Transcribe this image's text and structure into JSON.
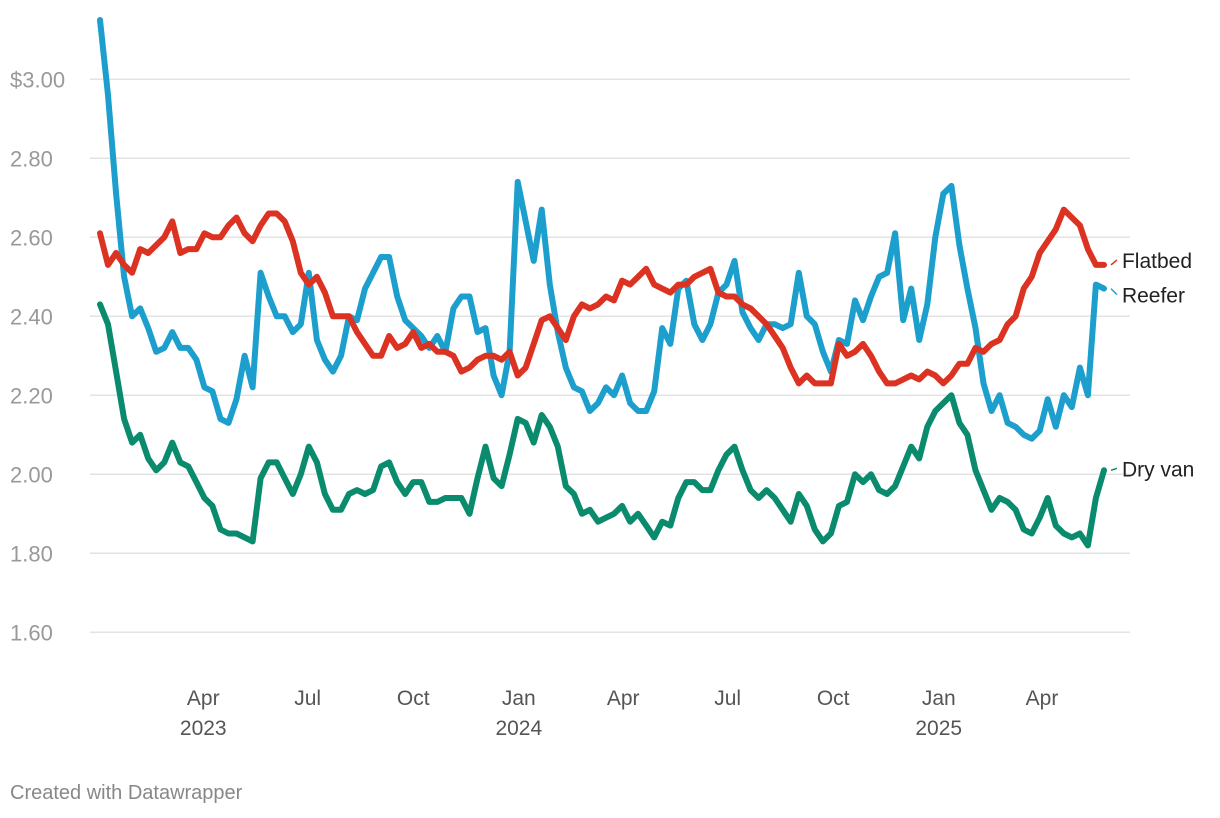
{
  "footer": {
    "credit": "Created with Datawrapper"
  },
  "chart_data": {
    "type": "line",
    "title": "",
    "xlabel": "",
    "ylabel": "",
    "ylim": [
      1.55,
      3.15
    ],
    "y_ticks": [
      1.6,
      1.8,
      2.0,
      2.2,
      2.4,
      2.6,
      2.8,
      3.0
    ],
    "y_tick_labels": [
      "1.60",
      "1.80",
      "2.00",
      "2.20",
      "2.40",
      "2.60",
      "2.80",
      "$3.00"
    ],
    "grid": true,
    "x_range": [
      "2023-01-01",
      "2025-06-01"
    ],
    "x_ticks": [
      {
        "date": "2023-04-01",
        "label": "Apr",
        "year": "2023"
      },
      {
        "date": "2023-07-01",
        "label": "Jul",
        "year": ""
      },
      {
        "date": "2023-10-01",
        "label": "Oct",
        "year": ""
      },
      {
        "date": "2024-01-01",
        "label": "Jan",
        "year": "2024"
      },
      {
        "date": "2024-04-01",
        "label": "Apr",
        "year": ""
      },
      {
        "date": "2024-07-01",
        "label": "Jul",
        "year": ""
      },
      {
        "date": "2024-10-01",
        "label": "Oct",
        "year": ""
      },
      {
        "date": "2025-01-01",
        "label": "Jan",
        "year": "2025"
      },
      {
        "date": "2025-04-01",
        "label": "Apr",
        "year": ""
      }
    ],
    "x": [
      "2023-01-01",
      "2023-01-08",
      "2023-01-15",
      "2023-01-22",
      "2023-01-29",
      "2023-02-05",
      "2023-02-12",
      "2023-02-19",
      "2023-02-26",
      "2023-03-05",
      "2023-03-12",
      "2023-03-19",
      "2023-03-26",
      "2023-04-02",
      "2023-04-09",
      "2023-04-16",
      "2023-04-23",
      "2023-04-30",
      "2023-05-07",
      "2023-05-14",
      "2023-05-21",
      "2023-05-28",
      "2023-06-04",
      "2023-06-11",
      "2023-06-18",
      "2023-06-25",
      "2023-07-02",
      "2023-07-09",
      "2023-07-16",
      "2023-07-23",
      "2023-07-30",
      "2023-08-06",
      "2023-08-13",
      "2023-08-20",
      "2023-08-27",
      "2023-09-03",
      "2023-09-10",
      "2023-09-17",
      "2023-09-24",
      "2023-10-01",
      "2023-10-08",
      "2023-10-15",
      "2023-10-22",
      "2023-10-29",
      "2023-11-05",
      "2023-11-12",
      "2023-11-19",
      "2023-11-26",
      "2023-12-03",
      "2023-12-10",
      "2023-12-17",
      "2023-12-24",
      "2023-12-31",
      "2024-01-07",
      "2024-01-14",
      "2024-01-21",
      "2024-01-28",
      "2024-02-04",
      "2024-02-11",
      "2024-02-18",
      "2024-02-25",
      "2024-03-03",
      "2024-03-10",
      "2024-03-17",
      "2024-03-24",
      "2024-03-31",
      "2024-04-07",
      "2024-04-14",
      "2024-04-21",
      "2024-04-28",
      "2024-05-05",
      "2024-05-12",
      "2024-05-19",
      "2024-05-26",
      "2024-06-02",
      "2024-06-09",
      "2024-06-16",
      "2024-06-23",
      "2024-06-30",
      "2024-07-07",
      "2024-07-14",
      "2024-07-21",
      "2024-07-28",
      "2024-08-04",
      "2024-08-11",
      "2024-08-18",
      "2024-08-25",
      "2024-09-01",
      "2024-09-08",
      "2024-09-15",
      "2024-09-22",
      "2024-09-29",
      "2024-10-06",
      "2024-10-13",
      "2024-10-20",
      "2024-10-27",
      "2024-11-03",
      "2024-11-10",
      "2024-11-17",
      "2024-11-24",
      "2024-12-01",
      "2024-12-08",
      "2024-12-15",
      "2024-12-22",
      "2024-12-29",
      "2025-01-05",
      "2025-01-12",
      "2025-01-19",
      "2025-01-26",
      "2025-02-02",
      "2025-02-09",
      "2025-02-16",
      "2025-02-23",
      "2025-03-02",
      "2025-03-09",
      "2025-03-16",
      "2025-03-23",
      "2025-03-30",
      "2025-04-06",
      "2025-04-13",
      "2025-04-20",
      "2025-04-27",
      "2025-05-04",
      "2025-05-11",
      "2025-05-18",
      "2025-05-25"
    ],
    "series": [
      {
        "name": "Flatbed",
        "color": "#dc3222",
        "values": [
          2.61,
          2.53,
          2.56,
          2.53,
          2.51,
          2.57,
          2.56,
          2.58,
          2.6,
          2.64,
          2.56,
          2.57,
          2.57,
          2.61,
          2.6,
          2.6,
          2.63,
          2.65,
          2.61,
          2.59,
          2.63,
          2.66,
          2.66,
          2.64,
          2.59,
          2.51,
          2.48,
          2.5,
          2.46,
          2.4,
          2.4,
          2.4,
          2.36,
          2.33,
          2.3,
          2.3,
          2.35,
          2.32,
          2.33,
          2.36,
          2.32,
          2.33,
          2.31,
          2.31,
          2.3,
          2.26,
          2.27,
          2.29,
          2.3,
          2.3,
          2.29,
          2.31,
          2.25,
          2.27,
          2.33,
          2.39,
          2.4,
          2.37,
          2.34,
          2.4,
          2.43,
          2.42,
          2.43,
          2.45,
          2.44,
          2.49,
          2.48,
          2.5,
          2.52,
          2.48,
          2.47,
          2.46,
          2.48,
          2.48,
          2.5,
          2.51,
          2.52,
          2.46,
          2.45,
          2.45,
          2.43,
          2.42,
          2.4,
          2.38,
          2.35,
          2.32,
          2.27,
          2.23,
          2.25,
          2.23,
          2.23,
          2.23,
          2.33,
          2.3,
          2.31,
          2.33,
          2.3,
          2.26,
          2.23,
          2.23,
          2.24,
          2.25,
          2.24,
          2.26,
          2.25,
          2.23,
          2.25,
          2.28,
          2.28,
          2.32,
          2.31,
          2.33,
          2.34,
          2.38,
          2.4,
          2.47,
          2.5,
          2.56,
          2.59,
          2.62,
          2.67,
          2.65,
          2.63,
          2.57,
          2.53,
          2.53
        ]
      },
      {
        "name": "Reefer",
        "color": "#1d9fce",
        "values": [
          3.15,
          2.96,
          2.71,
          2.5,
          2.4,
          2.42,
          2.37,
          2.31,
          2.32,
          2.36,
          2.32,
          2.32,
          2.29,
          2.22,
          2.21,
          2.14,
          2.13,
          2.19,
          2.3,
          2.22,
          2.51,
          2.45,
          2.4,
          2.4,
          2.36,
          2.38,
          2.51,
          2.34,
          2.29,
          2.26,
          2.3,
          2.4,
          2.39,
          2.47,
          2.51,
          2.55,
          2.55,
          2.45,
          2.39,
          2.37,
          2.35,
          2.32,
          2.35,
          2.31,
          2.42,
          2.45,
          2.45,
          2.36,
          2.37,
          2.25,
          2.2,
          2.31,
          2.74,
          2.64,
          2.54,
          2.67,
          2.48,
          2.36,
          2.27,
          2.22,
          2.21,
          2.16,
          2.18,
          2.22,
          2.2,
          2.25,
          2.18,
          2.16,
          2.16,
          2.21,
          2.37,
          2.33,
          2.47,
          2.49,
          2.38,
          2.34,
          2.38,
          2.46,
          2.48,
          2.54,
          2.41,
          2.37,
          2.34,
          2.38,
          2.38,
          2.37,
          2.38,
          2.51,
          2.4,
          2.38,
          2.31,
          2.26,
          2.34,
          2.33,
          2.44,
          2.39,
          2.45,
          2.5,
          2.51,
          2.61,
          2.39,
          2.47,
          2.34,
          2.43,
          2.6,
          2.71,
          2.73,
          2.58,
          2.47,
          2.37,
          2.23,
          2.16,
          2.2,
          2.13,
          2.12,
          2.1,
          2.09,
          2.11,
          2.19,
          2.12,
          2.2,
          2.17,
          2.27,
          2.2,
          2.48,
          2.47
        ]
      },
      {
        "name": "Dry van",
        "color": "#0a8b6e",
        "values": [
          2.43,
          2.38,
          2.26,
          2.14,
          2.08,
          2.1,
          2.04,
          2.01,
          2.03,
          2.08,
          2.03,
          2.02,
          1.98,
          1.94,
          1.92,
          1.86,
          1.85,
          1.85,
          1.84,
          1.83,
          1.99,
          2.03,
          2.03,
          1.99,
          1.95,
          2.0,
          2.07,
          2.03,
          1.95,
          1.91,
          1.91,
          1.95,
          1.96,
          1.95,
          1.96,
          2.02,
          2.03,
          1.98,
          1.95,
          1.98,
          1.98,
          1.93,
          1.93,
          1.94,
          1.94,
          1.94,
          1.9,
          1.99,
          2.07,
          1.99,
          1.97,
          2.05,
          2.14,
          2.13,
          2.08,
          2.15,
          2.12,
          2.07,
          1.97,
          1.95,
          1.9,
          1.91,
          1.88,
          1.89,
          1.9,
          1.92,
          1.88,
          1.9,
          1.87,
          1.84,
          1.88,
          1.87,
          1.94,
          1.98,
          1.98,
          1.96,
          1.96,
          2.01,
          2.05,
          2.07,
          2.01,
          1.96,
          1.94,
          1.96,
          1.94,
          1.91,
          1.88,
          1.95,
          1.92,
          1.86,
          1.83,
          1.85,
          1.92,
          1.93,
          2.0,
          1.98,
          2.0,
          1.96,
          1.95,
          1.97,
          2.02,
          2.07,
          2.04,
          2.12,
          2.16,
          2.18,
          2.2,
          2.13,
          2.1,
          2.01,
          1.96,
          1.91,
          1.94,
          1.93,
          1.91,
          1.86,
          1.85,
          1.89,
          1.94,
          1.87,
          1.85,
          1.84,
          1.85,
          1.82,
          1.94,
          2.01
        ]
      }
    ]
  }
}
